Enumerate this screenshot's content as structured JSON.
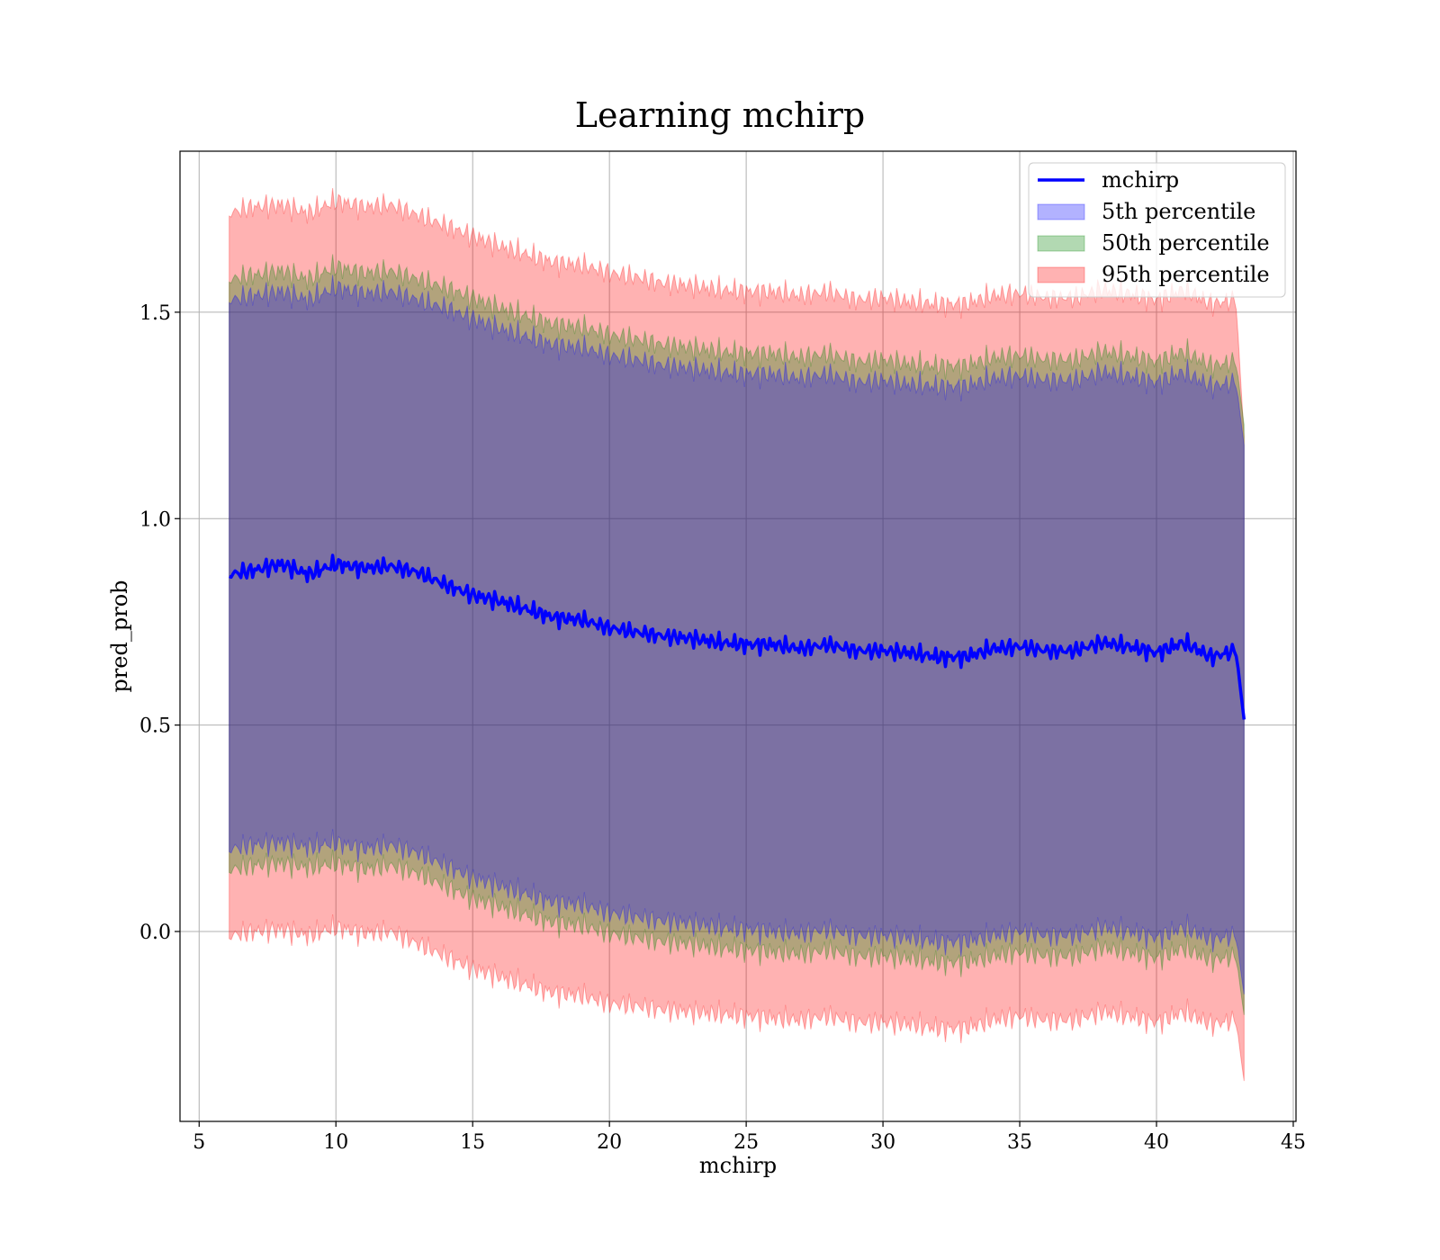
{
  "chart_data": {
    "type": "area",
    "title": "Learning mchirp",
    "xlabel": "mchirp",
    "ylabel": "pred_prob",
    "xlim": [
      4.3,
      45.1
    ],
    "ylim": [
      -0.46,
      1.89
    ],
    "xticks": [
      5,
      10,
      15,
      20,
      25,
      30,
      35,
      40,
      45
    ],
    "yticks": [
      0.0,
      0.5,
      1.0,
      1.5
    ],
    "ytick_labels": [
      "0.0",
      "0.5",
      "1.0",
      "1.5"
    ],
    "grid": true,
    "legend_position": "top-right",
    "line": {
      "name": "mchirp",
      "color": "#0000ff",
      "x": [
        6.1,
        7,
        8,
        9,
        10,
        11,
        12,
        13,
        14,
        15,
        16,
        17,
        18,
        19,
        20,
        21,
        22,
        23,
        24,
        25,
        26,
        27,
        28,
        29,
        30,
        31,
        32,
        33,
        34,
        35,
        36,
        37,
        38,
        39,
        40,
        41,
        42,
        42.9,
        43.2
      ],
      "values": [
        0.865,
        0.875,
        0.89,
        0.865,
        0.89,
        0.88,
        0.885,
        0.87,
        0.84,
        0.815,
        0.8,
        0.78,
        0.76,
        0.755,
        0.735,
        0.725,
        0.715,
        0.71,
        0.7,
        0.695,
        0.695,
        0.685,
        0.695,
        0.68,
        0.68,
        0.675,
        0.665,
        0.665,
        0.685,
        0.69,
        0.68,
        0.68,
        0.7,
        0.69,
        0.675,
        0.7,
        0.665,
        0.68,
        0.515
      ]
    },
    "series": [
      {
        "name": "5th percentile",
        "color": "#0000ff",
        "x": [
          6.1,
          7,
          8,
          9,
          10,
          11,
          12,
          13,
          14,
          15,
          16,
          17,
          18,
          19,
          20,
          21,
          22,
          23,
          24,
          25,
          26,
          27,
          28,
          29,
          30,
          31,
          32,
          33,
          34,
          35,
          36,
          37,
          38,
          39,
          40,
          41,
          42,
          42.9,
          43.2
        ],
        "lower": [
          0.2,
          0.21,
          0.215,
          0.205,
          0.215,
          0.2,
          0.21,
          0.19,
          0.16,
          0.13,
          0.11,
          0.09,
          0.07,
          0.065,
          0.045,
          0.035,
          0.025,
          0.02,
          0.01,
          0.005,
          0.0,
          -0.005,
          0.005,
          -0.01,
          -0.01,
          -0.015,
          -0.025,
          -0.025,
          -0.01,
          0.0,
          -0.01,
          -0.01,
          0.01,
          0.0,
          -0.015,
          0.01,
          -0.02,
          -0.01,
          -0.15
        ],
        "upper": [
          1.53,
          1.54,
          1.55,
          1.53,
          1.56,
          1.545,
          1.55,
          1.53,
          1.51,
          1.485,
          1.46,
          1.44,
          1.42,
          1.415,
          1.395,
          1.385,
          1.37,
          1.365,
          1.355,
          1.35,
          1.35,
          1.34,
          1.35,
          1.33,
          1.335,
          1.325,
          1.32,
          1.32,
          1.34,
          1.345,
          1.335,
          1.335,
          1.355,
          1.345,
          1.33,
          1.355,
          1.32,
          1.33,
          1.18
        ]
      },
      {
        "name": "50th percentile",
        "color": "#008000",
        "x": [
          6.1,
          7,
          8,
          9,
          10,
          11,
          12,
          13,
          14,
          15,
          16,
          17,
          18,
          19,
          20,
          21,
          22,
          23,
          24,
          25,
          26,
          27,
          28,
          29,
          30,
          31,
          32,
          33,
          34,
          35,
          36,
          37,
          38,
          39,
          40,
          41,
          42,
          42.9,
          43.2
        ],
        "lower": [
          0.15,
          0.16,
          0.165,
          0.155,
          0.165,
          0.15,
          0.16,
          0.14,
          0.11,
          0.08,
          0.06,
          0.04,
          0.02,
          0.015,
          -0.005,
          -0.015,
          -0.025,
          -0.03,
          -0.04,
          -0.045,
          -0.05,
          -0.055,
          -0.045,
          -0.06,
          -0.06,
          -0.065,
          -0.075,
          -0.075,
          -0.06,
          -0.05,
          -0.06,
          -0.06,
          -0.04,
          -0.05,
          -0.065,
          -0.04,
          -0.07,
          -0.06,
          -0.2
        ],
        "upper": [
          1.58,
          1.59,
          1.6,
          1.58,
          1.61,
          1.595,
          1.6,
          1.58,
          1.56,
          1.535,
          1.51,
          1.49,
          1.47,
          1.465,
          1.445,
          1.435,
          1.42,
          1.415,
          1.405,
          1.4,
          1.4,
          1.39,
          1.4,
          1.38,
          1.385,
          1.375,
          1.37,
          1.37,
          1.39,
          1.395,
          1.385,
          1.385,
          1.405,
          1.395,
          1.38,
          1.405,
          1.37,
          1.38,
          1.23
        ]
      },
      {
        "name": "95th percentile",
        "color": "#ff0000",
        "x": [
          6.1,
          7,
          8,
          9,
          10,
          11,
          12,
          13,
          14,
          15,
          16,
          17,
          18,
          19,
          20,
          21,
          22,
          23,
          24,
          25,
          26,
          27,
          28,
          29,
          30,
          31,
          32,
          33,
          34,
          35,
          36,
          37,
          38,
          39,
          40,
          41,
          42,
          42.9,
          43.2
        ],
        "lower": [
          -0.01,
          0.0,
          0.005,
          -0.01,
          0.01,
          -0.005,
          0.0,
          -0.03,
          -0.06,
          -0.09,
          -0.11,
          -0.13,
          -0.15,
          -0.155,
          -0.175,
          -0.18,
          -0.19,
          -0.195,
          -0.2,
          -0.205,
          -0.21,
          -0.215,
          -0.205,
          -0.22,
          -0.22,
          -0.225,
          -0.235,
          -0.235,
          -0.215,
          -0.205,
          -0.215,
          -0.215,
          -0.195,
          -0.205,
          -0.22,
          -0.195,
          -0.225,
          -0.215,
          -0.36
        ],
        "upper": [
          1.74,
          1.755,
          1.76,
          1.74,
          1.77,
          1.755,
          1.76,
          1.735,
          1.71,
          1.685,
          1.66,
          1.64,
          1.62,
          1.615,
          1.595,
          1.585,
          1.57,
          1.565,
          1.555,
          1.55,
          1.55,
          1.54,
          1.55,
          1.53,
          1.535,
          1.525,
          1.52,
          1.52,
          1.54,
          1.545,
          1.535,
          1.535,
          1.555,
          1.545,
          1.53,
          1.555,
          1.52,
          1.53,
          1.2
        ]
      }
    ]
  }
}
